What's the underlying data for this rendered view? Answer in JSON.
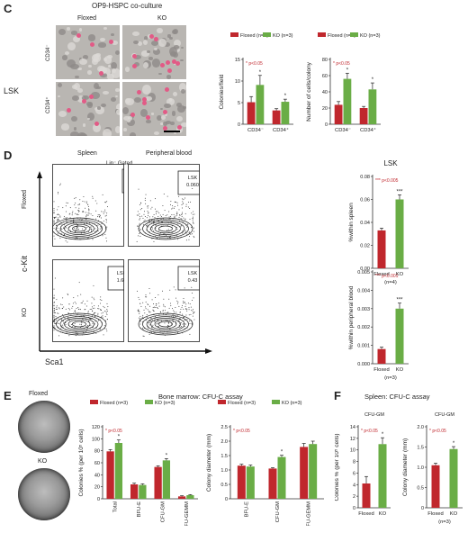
{
  "colors": {
    "floxed": "#c0272d",
    "ko": "#6aad46",
    "axis": "#333333",
    "sig": "#c0272d"
  },
  "panel_c": {
    "letter": "C",
    "title": "OP9-HSPC co-culture",
    "col_floxed": "Floxed",
    "col_ko": "KO",
    "row_cd34neg": "CD34⁻",
    "row_cd34pos": "CD34⁺",
    "side": "LSK"
  },
  "panel_d": {
    "letter": "D",
    "col_spleen": "Spleen",
    "col_pb": "Peripheral blood",
    "gated": "Lin⁻ Gated",
    "row_floxed": "Floxed",
    "row_ko": "KO",
    "yaxis": "c-Kit",
    "xaxis": "Sca1",
    "plots": [
      {
        "gate": "LSK",
        "value": "0.58"
      },
      {
        "gate": "LSK",
        "value": "0.060"
      },
      {
        "gate": "LSK",
        "value": "1.60"
      },
      {
        "gate": "LSK",
        "value": "0.43"
      }
    ],
    "lsk_title": "LSK"
  },
  "panel_e": {
    "letter": "E",
    "dish_floxed": "Floxed",
    "dish_ko": "KO",
    "title": "Bone marrow: CFU-C assay"
  },
  "panel_f": {
    "letter": "F",
    "title": "Spleen: CFU-C assay"
  },
  "chart_data": [
    {
      "id": "c1",
      "type": "bar",
      "categories": [
        "CD34⁻",
        "CD34⁺"
      ],
      "series": [
        {
          "name": "Floxed (n=3)",
          "values": [
            5.1,
            3.2
          ],
          "err": [
            1.3,
            0.4
          ]
        },
        {
          "name": "KO (n=3)",
          "values": [
            9.1,
            5.2
          ],
          "err": [
            2.2,
            0.6
          ]
        }
      ],
      "ylabel": "Colonies/field",
      "ylim": [
        0,
        15
      ],
      "yticks": [
        0,
        5,
        10,
        15
      ],
      "sig": "* p<0.05",
      "stars": [
        "*",
        "*"
      ],
      "legend": "top"
    },
    {
      "id": "c2",
      "type": "bar",
      "categories": [
        "CD34⁻",
        "CD34⁺"
      ],
      "series": [
        {
          "name": "Floxed (n=3)",
          "values": [
            24,
            20
          ],
          "err": [
            4,
            2
          ]
        },
        {
          "name": "KO (n=3)",
          "values": [
            56,
            43
          ],
          "err": [
            7,
            8
          ]
        }
      ],
      "ylabel": "Number of cells/colony",
      "ylim": [
        0,
        80
      ],
      "yticks": [
        0,
        20,
        40,
        60,
        80
      ],
      "sig": "* p<0.05",
      "stars": [
        "*",
        "*"
      ]
    },
    {
      "id": "d1",
      "type": "bar",
      "categories": [
        "Floxed",
        "KO"
      ],
      "series": [
        {
          "name": "",
          "values": [
            0.033,
            0.06
          ],
          "err": [
            0.002,
            0.004
          ]
        }
      ],
      "ylabel": "%within spleen",
      "ylim": [
        0,
        0.08
      ],
      "yticks": [
        "0.00",
        "0.02",
        "0.04",
        "0.06",
        "0.08"
      ],
      "sig": "*** p<0.005",
      "stars": [
        "",
        "***"
      ],
      "n": "(n=4)"
    },
    {
      "id": "d2",
      "type": "bar",
      "categories": [
        "Floxed",
        "KO"
      ],
      "series": [
        {
          "name": "",
          "values": [
            0.0008,
            0.003
          ],
          "err": [
            0.0001,
            0.0003
          ]
        }
      ],
      "ylabel": "%within peripheral blood",
      "ylim": [
        0,
        0.005
      ],
      "yticks": [
        "0.000",
        "0.001",
        "0.002",
        "0.003",
        "0.004",
        "0.005"
      ],
      "sig": "*** p<0.001",
      "stars": [
        "",
        "***"
      ],
      "n": "(n=3)"
    },
    {
      "id": "e1",
      "type": "bar",
      "categories": [
        "Total",
        "BFU-E",
        "CFU-GM",
        "CFU-GEMM"
      ],
      "series": [
        {
          "name": "Floxed (n=3)",
          "values": [
            79,
            24,
            53,
            4
          ],
          "err": [
            3,
            2,
            2,
            1
          ]
        },
        {
          "name": "KO (n=3)",
          "values": [
            93,
            23,
            64,
            6
          ],
          "err": [
            5,
            2,
            3,
            1
          ]
        }
      ],
      "ylabel": "Colonies % (per 10⁵ cells)",
      "ylim": [
        0,
        120
      ],
      "yticks": [
        0,
        20,
        40,
        60,
        80,
        100,
        120
      ],
      "sig": "* p<0.05",
      "stars": [
        "*",
        "",
        "*",
        ""
      ]
    },
    {
      "id": "e2",
      "type": "bar",
      "categories": [
        "BFU-E",
        "CFU-GM",
        "CFU-GEMM"
      ],
      "series": [
        {
          "name": "Floxed (n=3)",
          "values": [
            1.15,
            1.05,
            1.8
          ],
          "err": [
            0.05,
            0.03,
            0.12
          ]
        },
        {
          "name": "KO (n=3)",
          "values": [
            1.12,
            1.45,
            1.9
          ],
          "err": [
            0.05,
            0.06,
            0.1
          ]
        }
      ],
      "ylabel": "Colony diameter (mm)",
      "ylim": [
        0,
        2.5
      ],
      "yticks": [
        "0",
        "0.5",
        "1.0",
        "1.5",
        "2.0",
        "2.5"
      ],
      "sig": "* p<0.05",
      "stars": [
        "",
        "*",
        ""
      ]
    },
    {
      "id": "f1",
      "type": "bar",
      "categories": [
        "Floxed",
        "KO"
      ],
      "series": [
        {
          "name": "",
          "values": [
            4.2,
            11.0
          ],
          "err": [
            1.2,
            1.1
          ]
        }
      ],
      "ylabel": "Colonies % (per 10⁵ cells)",
      "ylim": [
        0,
        14
      ],
      "yticks": [
        0,
        2,
        4,
        6,
        8,
        10,
        12,
        14
      ],
      "sig": "* p<0.05",
      "stars": [
        "",
        "*"
      ],
      "group": "CFU-GM"
    },
    {
      "id": "f2",
      "type": "bar",
      "categories": [
        "Floxed",
        "KO"
      ],
      "series": [
        {
          "name": "",
          "values": [
            1.05,
            1.45
          ],
          "err": [
            0.05,
            0.06
          ]
        }
      ],
      "ylabel": "Colony diameter (mm)",
      "ylim": [
        0,
        2.0
      ],
      "yticks": [
        "0",
        "0.5",
        "1.0",
        "1.5",
        "2.0"
      ],
      "sig": "* p<0.05",
      "stars": [
        "",
        "*"
      ],
      "group": "CFU-GM",
      "n": "(n=3)"
    }
  ]
}
